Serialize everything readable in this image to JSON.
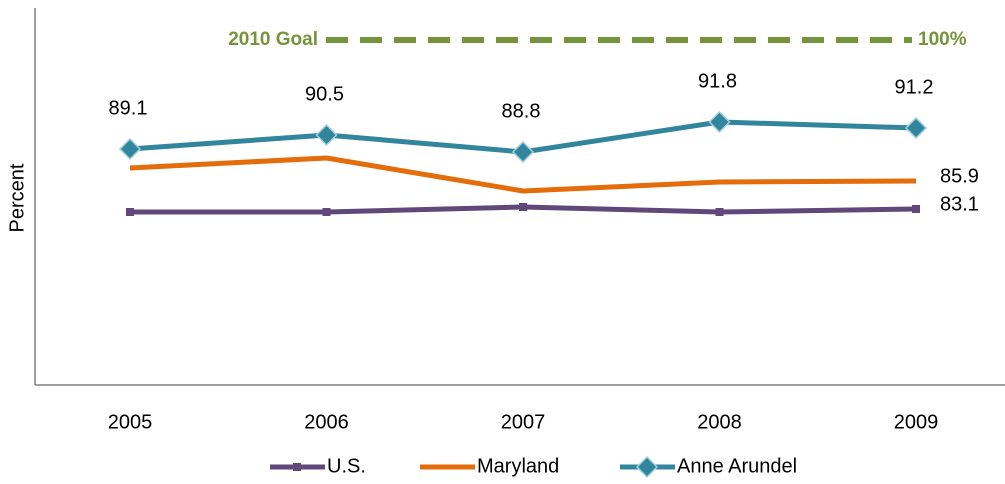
{
  "chart_data": {
    "type": "line",
    "y_label": "Percent",
    "categories": [
      "2005",
      "2006",
      "2007",
      "2008",
      "2009"
    ],
    "series": [
      {
        "name": "U.S.",
        "color": "#60497a",
        "marker": "square",
        "labels": "last",
        "values": [
          82.8,
          82.8,
          83.3,
          82.8,
          83.1
        ]
      },
      {
        "name": "Maryland",
        "color": "#e46c0a",
        "marker": "none",
        "labels": "last",
        "values": [
          87.2,
          88.2,
          84.9,
          85.8,
          85.9
        ]
      },
      {
        "name": "Anne Arundel",
        "color": "#31859c",
        "marker": "diamond",
        "labels": "all",
        "values": [
          89.1,
          90.5,
          88.8,
          91.8,
          91.2
        ]
      }
    ],
    "goal": {
      "label": "2010 Goal",
      "value": 100,
      "value_label": "100%",
      "color": "#77933c"
    },
    "ylim": [
      65.5,
      103
    ],
    "legend": "bottom"
  }
}
